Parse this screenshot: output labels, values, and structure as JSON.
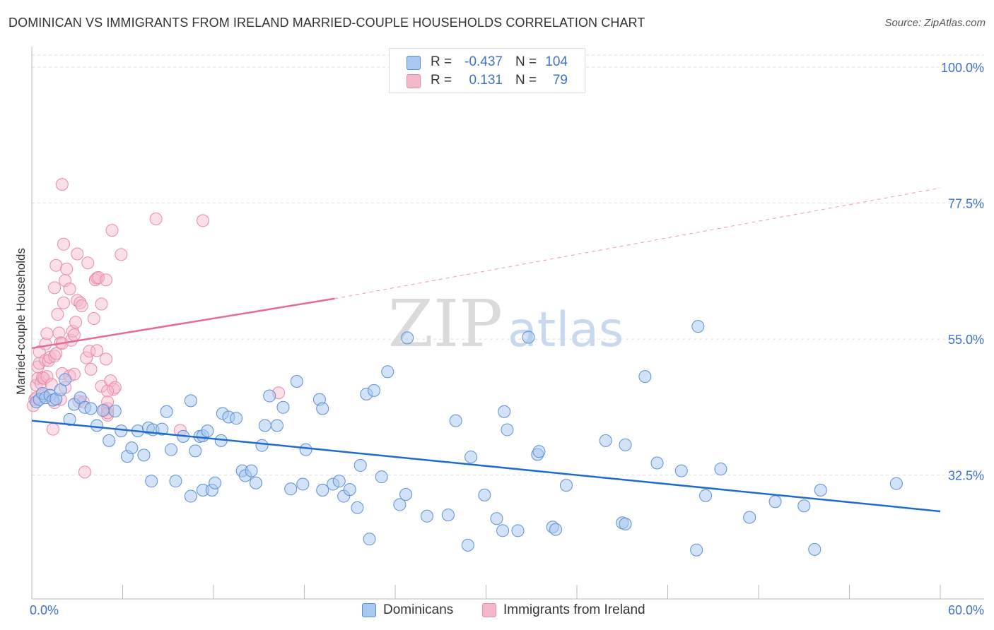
{
  "title": "DOMINICAN VS IMMIGRANTS FROM IRELAND MARRIED-COUPLE HOUSEHOLDS CORRELATION CHART",
  "source": "Source: ZipAtlas.com",
  "watermark": {
    "zip": "ZIP",
    "atlas": "atlas"
  },
  "legend": {
    "r_label": "R =",
    "n_label": "N =",
    "rows": [
      {
        "name": "Dominicans",
        "r": "-0.437",
        "n": "104"
      },
      {
        "name": "Immigrants from Ireland",
        "r": "0.131",
        "n": "79"
      }
    ]
  },
  "colors": {
    "blue_fill": "#a8c8f0",
    "blue_stroke": "#5b8fd6",
    "blue_line": "#1f6bd0",
    "pink_fill": "#f5b8cb",
    "pink_stroke": "#e98aaa",
    "pink_line": "#e56a94",
    "tick_text": "#3d6fd0",
    "grid": "#dddddd",
    "axis": "#bbbbbb"
  },
  "chart_data": {
    "type": "scatter",
    "title": "DOMINICAN VS IMMIGRANTS FROM IRELAND MARRIED-COUPLE HOUSEHOLDS CORRELATION CHART",
    "xlabel": "",
    "ylabel": "Married-couple Households",
    "xlim": [
      0,
      60
    ],
    "ylim": [
      12,
      102
    ],
    "x_tick_labels": [
      "0.0%",
      "60.0%"
    ],
    "y_ticks": [
      100,
      77.5,
      55,
      32.5
    ],
    "y_tick_labels": [
      "100.0%",
      "77.5%",
      "55.0%",
      "32.5%"
    ],
    "series": [
      {
        "name": "Dominicans",
        "r": -0.437,
        "n": 104,
        "trend": {
          "x": [
            0,
            60
          ],
          "y": [
            41.5,
            26.5
          ]
        },
        "points": [
          [
            0.3,
            44.6
          ],
          [
            0.5,
            45.0
          ],
          [
            0.7,
            46.0
          ],
          [
            0.9,
            45.3
          ],
          [
            1.2,
            45.7
          ],
          [
            1.4,
            44.9
          ],
          [
            1.6,
            45.1
          ],
          [
            1.9,
            46.6
          ],
          [
            2.2,
            48.3
          ],
          [
            2.5,
            41.7
          ],
          [
            2.8,
            44.2
          ],
          [
            3.2,
            45.3
          ],
          [
            3.5,
            43.7
          ],
          [
            3.9,
            43.5
          ],
          [
            4.3,
            40.7
          ],
          [
            4.7,
            43.2
          ],
          [
            5.1,
            38.2
          ],
          [
            5.5,
            43.1
          ],
          [
            5.9,
            39.8
          ],
          [
            6.3,
            35.6
          ],
          [
            6.6,
            37.0
          ],
          [
            7.0,
            39.8
          ],
          [
            7.4,
            35.8
          ],
          [
            7.7,
            40.3
          ],
          [
            8.0,
            40.0
          ],
          [
            8.6,
            40.1
          ],
          [
            7.9,
            31.5
          ],
          [
            8.9,
            43.0
          ],
          [
            9.2,
            36.7
          ],
          [
            9.5,
            31.5
          ],
          [
            10.0,
            38.9
          ],
          [
            10.5,
            44.8
          ],
          [
            10.8,
            36.5
          ],
          [
            11.1,
            38.9
          ],
          [
            11.3,
            39.0
          ],
          [
            11.6,
            39.8
          ],
          [
            10.5,
            29.0
          ],
          [
            11.3,
            30.0
          ],
          [
            11.9,
            30.0
          ],
          [
            12.1,
            31.2
          ],
          [
            12.5,
            38.2
          ],
          [
            12.6,
            42.7
          ],
          [
            13.0,
            42.1
          ],
          [
            13.5,
            41.9
          ],
          [
            13.9,
            33.2
          ],
          [
            14.1,
            32.4
          ],
          [
            14.5,
            33.2
          ],
          [
            14.8,
            31.2
          ],
          [
            15.2,
            37.4
          ],
          [
            15.4,
            40.7
          ],
          [
            15.7,
            45.6
          ],
          [
            16.2,
            40.7
          ],
          [
            16.6,
            43.7
          ],
          [
            17.1,
            30.2
          ],
          [
            17.5,
            48.0
          ],
          [
            17.9,
            31.0
          ],
          [
            18.1,
            36.7
          ],
          [
            19.0,
            45.0
          ],
          [
            19.2,
            30.0
          ],
          [
            19.2,
            43.5
          ],
          [
            19.9,
            31.0
          ],
          [
            20.3,
            31.5
          ],
          [
            20.6,
            29.0
          ],
          [
            21.0,
            30.1
          ],
          [
            21.5,
            27.1
          ],
          [
            21.7,
            34.1
          ],
          [
            22.1,
            45.9
          ],
          [
            22.3,
            21.9
          ],
          [
            22.6,
            46.5
          ],
          [
            23.1,
            32.2
          ],
          [
            23.5,
            49.6
          ],
          [
            24.3,
            27.6
          ],
          [
            24.8,
            55.2
          ],
          [
            24.7,
            29.3
          ],
          [
            26.1,
            25.7
          ],
          [
            27.5,
            25.9
          ],
          [
            28.0,
            41.5
          ],
          [
            28.8,
            20.9
          ],
          [
            29.0,
            35.5
          ],
          [
            29.9,
            29.2
          ],
          [
            30.7,
            25.3
          ],
          [
            31.1,
            23.3
          ],
          [
            31.2,
            43.0
          ],
          [
            31.4,
            40.0
          ],
          [
            32.1,
            23.3
          ],
          [
            32.8,
            55.3
          ],
          [
            33.4,
            35.9
          ],
          [
            33.5,
            36.4
          ],
          [
            34.4,
            23.9
          ],
          [
            34.6,
            23.5
          ],
          [
            35.3,
            30.8
          ],
          [
            37.9,
            38.2
          ],
          [
            39.0,
            24.6
          ],
          [
            39.2,
            37.5
          ],
          [
            40.5,
            48.8
          ],
          [
            41.3,
            34.5
          ],
          [
            42.9,
            33.2
          ],
          [
            43.9,
            20.1
          ],
          [
            44.0,
            57.1
          ],
          [
            44.5,
            29.1
          ],
          [
            45.5,
            33.5
          ],
          [
            47.4,
            25.5
          ],
          [
            49.1,
            28.1
          ],
          [
            51.0,
            27.4
          ],
          [
            51.7,
            20.2
          ],
          [
            52.1,
            30.0
          ],
          [
            57.1,
            31.1
          ],
          [
            39.2,
            24.4
          ]
        ]
      },
      {
        "name": "Immigrants from Ireland",
        "r": 0.131,
        "n": 79,
        "trend": {
          "x": [
            0,
            20
          ],
          "y": [
            53.5,
            61.7
          ]
        },
        "trend_dashed": {
          "x": [
            20,
            60
          ],
          "y": [
            61.7,
            80.0
          ]
        },
        "points": [
          [
            0.1,
            44.0
          ],
          [
            0.2,
            45.0
          ],
          [
            0.3,
            45.3
          ],
          [
            0.3,
            47.4
          ],
          [
            0.4,
            48.5
          ],
          [
            0.4,
            50.4
          ],
          [
            0.5,
            51.0
          ],
          [
            0.5,
            52.9
          ],
          [
            0.6,
            47.7
          ],
          [
            0.7,
            48.6
          ],
          [
            0.8,
            48.5
          ],
          [
            0.8,
            45.6
          ],
          [
            0.9,
            51.5
          ],
          [
            0.9,
            54.2
          ],
          [
            1.0,
            55.9
          ],
          [
            1.0,
            48.8
          ],
          [
            1.1,
            51.4
          ],
          [
            1.2,
            52.0
          ],
          [
            1.3,
            47.5
          ],
          [
            1.4,
            40.1
          ],
          [
            1.5,
            44.5
          ],
          [
            1.5,
            52.2
          ],
          [
            1.6,
            52.6
          ],
          [
            1.7,
            59.1
          ],
          [
            1.8,
            56.0
          ],
          [
            1.5,
            63.5
          ],
          [
            1.9,
            45.0
          ],
          [
            1.6,
            67.2
          ],
          [
            1.9,
            54.4
          ],
          [
            2.0,
            49.3
          ],
          [
            2.0,
            54.3
          ],
          [
            2.1,
            61.0
          ],
          [
            2.2,
            64.7
          ],
          [
            2.0,
            80.6
          ],
          [
            2.1,
            70.7
          ],
          [
            2.2,
            47.0
          ],
          [
            2.3,
            66.6
          ],
          [
            2.5,
            48.9
          ],
          [
            2.5,
            63.3
          ],
          [
            2.6,
            54.8
          ],
          [
            2.7,
            56.3
          ],
          [
            2.8,
            55.7
          ],
          [
            2.8,
            49.2
          ],
          [
            2.9,
            57.8
          ],
          [
            3.0,
            61.4
          ],
          [
            3.0,
            69.1
          ],
          [
            3.1,
            44.7
          ],
          [
            3.2,
            61.0
          ],
          [
            3.3,
            60.5
          ],
          [
            3.4,
            44.6
          ],
          [
            3.5,
            33.0
          ],
          [
            3.6,
            51.9
          ],
          [
            3.7,
            67.6
          ],
          [
            3.8,
            53.0
          ],
          [
            3.9,
            50.0
          ],
          [
            4.1,
            58.4
          ],
          [
            4.2,
            64.8
          ],
          [
            4.3,
            53.1
          ],
          [
            4.3,
            65.1
          ],
          [
            4.4,
            65.2
          ],
          [
            4.6,
            60.8
          ],
          [
            4.6,
            47.2
          ],
          [
            4.8,
            43.3
          ],
          [
            4.9,
            51.7
          ],
          [
            4.9,
            64.8
          ],
          [
            5.0,
            42.4
          ],
          [
            5.0,
            43.5
          ],
          [
            5.0,
            42.8
          ],
          [
            5.2,
            48.1
          ],
          [
            5.3,
            73.0
          ],
          [
            5.4,
            46.7
          ],
          [
            5.5,
            47.0
          ],
          [
            5.0,
            46.4
          ],
          [
            5.0,
            44.6
          ],
          [
            5.9,
            69.0
          ],
          [
            8.2,
            74.9
          ],
          [
            9.8,
            39.9
          ],
          [
            11.3,
            74.6
          ],
          [
            16.3,
            46.1
          ]
        ]
      }
    ]
  }
}
